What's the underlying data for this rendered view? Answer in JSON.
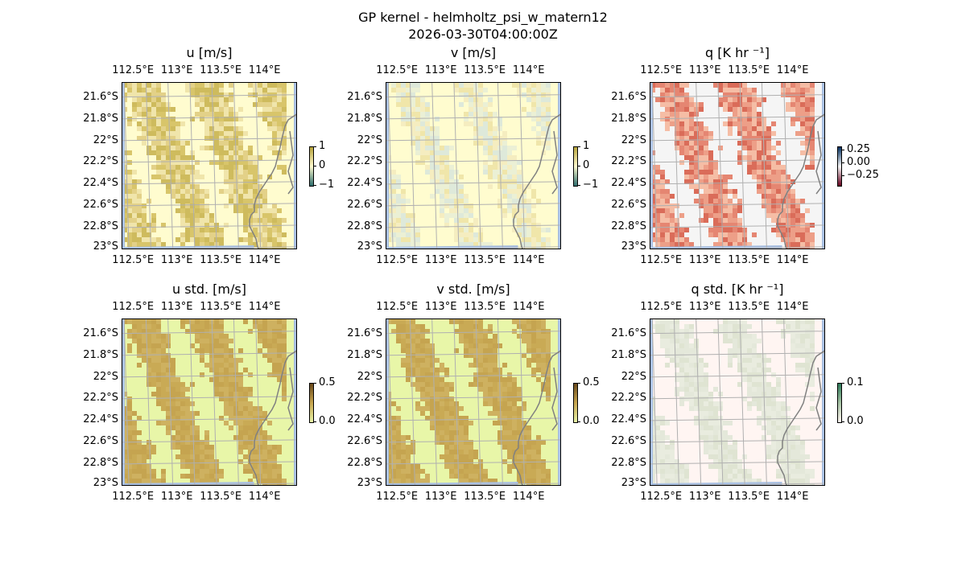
{
  "figure": {
    "title": "GP kernel - helmholtz_psi_w_matern12",
    "timestamp": "2026-03-30T04:00:00Z"
  },
  "colors": {
    "land": "#f5f5f5",
    "ocean": "#a9c0e2",
    "coast": "#808080",
    "grid": "#b0b0b0"
  },
  "chart_data": [
    {
      "type": "heatmap",
      "title": "u [m/s]",
      "x_ticks": [
        "112.5°E",
        "113°E",
        "113.5°E",
        "114°E"
      ],
      "y_ticks": [
        "21.6°S",
        "21.8°S",
        "22°S",
        "22.2°S",
        "22.4°S",
        "22.6°S",
        "22.8°S",
        "23°S"
      ],
      "xlim": [
        112.4,
        114.2
      ],
      "ylim": [
        -23.0,
        -21.5
      ],
      "colorbar": {
        "ticks": [
          "1",
          "0",
          "−1"
        ],
        "range": [
          -1,
          1
        ],
        "colors": [
          "#2d6e6e",
          "#fffbd0",
          "#b8a43a"
        ]
      },
      "fill": {
        "base": "#fffccf",
        "patch": [
          "#eee2a6",
          "#e0cc80",
          "#d4bf5e",
          "#c9b450"
        ],
        "coverage": 0.55,
        "alpha": 0.9
      }
    },
    {
      "type": "heatmap",
      "title": "v [m/s]",
      "x_ticks": [
        "112.5°E",
        "113°E",
        "113.5°E",
        "114°E"
      ],
      "y_ticks": [
        "21.6°S",
        "21.8°S",
        "22°S",
        "22.2°S",
        "22.4°S",
        "22.6°S",
        "22.8°S",
        "23°S"
      ],
      "xlim": [
        112.4,
        114.2
      ],
      "ylim": [
        -23.0,
        -21.5
      ],
      "colorbar": {
        "ticks": [
          "1",
          "0",
          "−1"
        ],
        "range": [
          -1,
          1
        ],
        "colors": [
          "#2d6e6e",
          "#fffbd0",
          "#b8a43a"
        ]
      },
      "fill": {
        "base": "#fffccf",
        "patch": [
          "#f2e9bb",
          "#e6ecd6",
          "#d6e4dc",
          "#ece0a0"
        ],
        "coverage": 0.4,
        "alpha": 0.8
      }
    },
    {
      "type": "heatmap",
      "title": "q [K hr ⁻¹]",
      "x_ticks": [
        "112.5°E",
        "113°E",
        "113.5°E",
        "114°E"
      ],
      "y_ticks": [
        "21.6°S",
        "21.8°S",
        "22°S",
        "22.2°S",
        "22.4°S",
        "22.6°S",
        "22.8°S",
        "23°S"
      ],
      "xlim": [
        112.4,
        114.2
      ],
      "ylim": [
        -23.0,
        -21.5
      ],
      "colorbar": {
        "ticks": [
          "0.25",
          "0.00",
          "−0.25"
        ],
        "range": [
          -0.3,
          0.3
        ],
        "colors": [
          "#67001f",
          "#f7f7f7",
          "#053061"
        ]
      },
      "fill": {
        "base": "#f5f5f5",
        "patch": [
          "#f4b9a0",
          "#ec9a82",
          "#e4806a",
          "#d86450"
        ],
        "coverage": 0.5,
        "alpha": 0.95
      }
    },
    {
      "type": "heatmap",
      "title": "u std. [m/s]",
      "x_ticks": [
        "112.5°E",
        "113°E",
        "113.5°E",
        "114°E"
      ],
      "y_ticks": [
        "21.6°S",
        "21.8°S",
        "22°S",
        "22.2°S",
        "22.4°S",
        "22.6°S",
        "22.8°S",
        "23°S"
      ],
      "xlim": [
        112.4,
        114.2
      ],
      "ylim": [
        -23.0,
        -21.5
      ],
      "colorbar": {
        "ticks": [
          "0.5",
          "0.0"
        ],
        "range": [
          0,
          0.5
        ],
        "colors": [
          "#e8f5a8",
          "#c8a650",
          "#6a4a1c"
        ]
      },
      "fill": {
        "base": "#e8f6a8",
        "patch": [
          "#c9aa55",
          "#c5a450",
          "#ceb160"
        ],
        "coverage": 0.5,
        "alpha": 1.0
      }
    },
    {
      "type": "heatmap",
      "title": "v std. [m/s]",
      "x_ticks": [
        "112.5°E",
        "113°E",
        "113.5°E",
        "114°E"
      ],
      "y_ticks": [
        "21.6°S",
        "21.8°S",
        "22°S",
        "22.2°S",
        "22.4°S",
        "22.6°S",
        "22.8°S",
        "23°S"
      ],
      "xlim": [
        112.4,
        114.2
      ],
      "ylim": [
        -23.0,
        -21.5
      ],
      "colorbar": {
        "ticks": [
          "0.5",
          "0.0"
        ],
        "range": [
          0,
          0.5
        ],
        "colors": [
          "#e8f5a8",
          "#c8a650",
          "#6a4a1c"
        ]
      },
      "fill": {
        "base": "#e8f6a8",
        "patch": [
          "#c9aa55",
          "#c5a450",
          "#ceb160"
        ],
        "coverage": 0.5,
        "alpha": 1.0
      }
    },
    {
      "type": "heatmap",
      "title": "q std. [K hr ⁻¹]",
      "x_ticks": [
        "112.5°E",
        "113°E",
        "113.5°E",
        "114°E"
      ],
      "y_ticks": [
        "21.6°S",
        "21.8°S",
        "22°S",
        "22.2°S",
        "22.4°S",
        "22.6°S",
        "22.8°S",
        "23°S"
      ],
      "xlim": [
        112.4,
        114.2
      ],
      "ylim": [
        -23.0,
        -21.5
      ],
      "colorbar": {
        "ticks": [
          "0.1",
          "0.0"
        ],
        "range": [
          0,
          0.1
        ],
        "colors": [
          "#fff5f0",
          "#a6c3a4",
          "#2d7a5a"
        ]
      },
      "fill": {
        "base": "#fff5f2",
        "patch": [
          "#e9ecdf",
          "#dfe4d2",
          "#e4e8da"
        ],
        "coverage": 0.45,
        "alpha": 1.0
      }
    }
  ]
}
